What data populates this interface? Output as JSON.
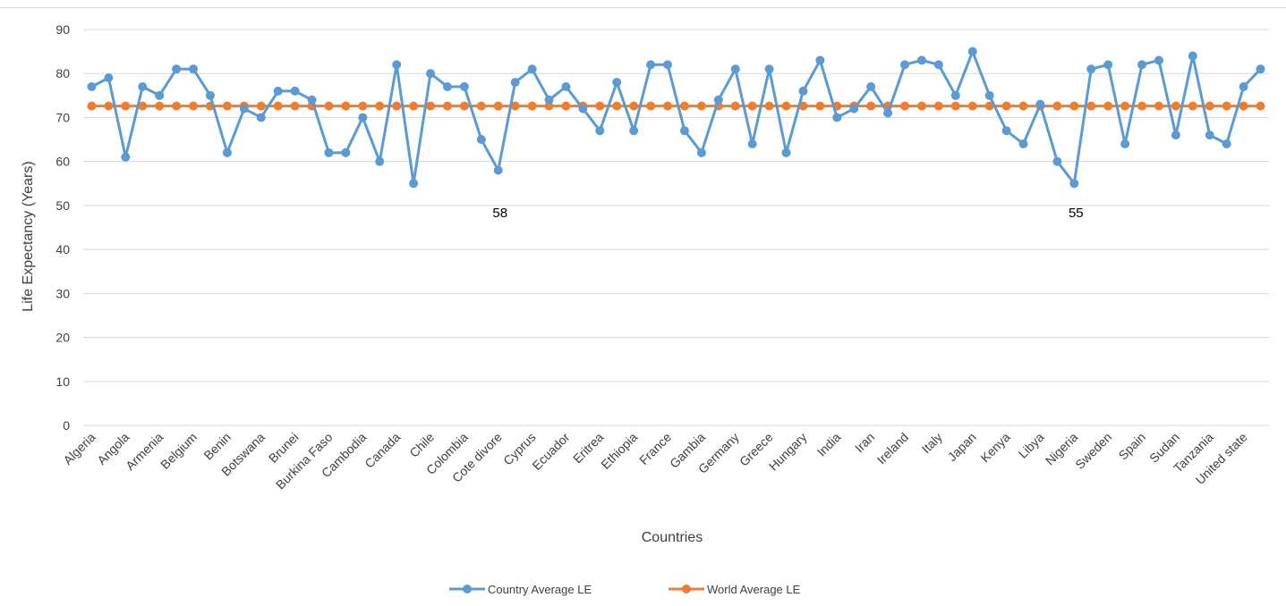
{
  "chart_data": {
    "type": "line",
    "title": "",
    "xlabel": "Countries",
    "ylabel": "Life Expectancy (Years)",
    "ylim": [
      0,
      90
    ],
    "yticks": [
      0,
      10,
      20,
      30,
      40,
      50,
      60,
      70,
      80,
      90
    ],
    "grid": true,
    "legend_position": "bottom",
    "x_tick_labels": [
      "Algeria",
      "Angola",
      "Armenia",
      "Belgium",
      "Benin",
      "Botswana",
      "Brunei",
      "Burkina Faso",
      "Cambodia",
      "Canada",
      "Chile",
      "Colombia",
      "Cote divore",
      "Cyprus",
      "Ecuador",
      "Eritrea",
      "Ethiopia",
      "France",
      "Gambia",
      "Germany",
      "Greece",
      "Hungary",
      "India",
      "Iran",
      "Ireland",
      "Italy",
      "Japan",
      "Kenya",
      "Libya",
      "Nigeria",
      "Sweden",
      "Spain",
      "Sudan",
      "Tanzania",
      "United state"
    ],
    "series": [
      {
        "name": "Country Average LE",
        "color": "#5b9bd5",
        "values": [
          77,
          79,
          61,
          77,
          75,
          81,
          81,
          75,
          62,
          72,
          70,
          76,
          76,
          74,
          62,
          62,
          70,
          60,
          82,
          55,
          80,
          77,
          77,
          65,
          58,
          78,
          81,
          74,
          77,
          72,
          67,
          78,
          67,
          82,
          82,
          67,
          62,
          74,
          81,
          64,
          81,
          62,
          76,
          83,
          70,
          72,
          77,
          71,
          82,
          83,
          82,
          75,
          85,
          75,
          67,
          64,
          73,
          60,
          55,
          81,
          82,
          64,
          82,
          83,
          66,
          84,
          66,
          64,
          77,
          81
        ]
      },
      {
        "name": "World Average LE",
        "color": "#ed7d31",
        "values": [
          72.6,
          72.6,
          72.6,
          72.6,
          72.6,
          72.6,
          72.6,
          72.6,
          72.6,
          72.6,
          72.6,
          72.6,
          72.6,
          72.6,
          72.6,
          72.6,
          72.6,
          72.6,
          72.6,
          72.6,
          72.6,
          72.6,
          72.6,
          72.6,
          72.6,
          72.6,
          72.6,
          72.6,
          72.6,
          72.6,
          72.6,
          72.6,
          72.6,
          72.6,
          72.6,
          72.6,
          72.6,
          72.6,
          72.6,
          72.6,
          72.6,
          72.6,
          72.6,
          72.6,
          72.6,
          72.6,
          72.6,
          72.6,
          72.6,
          72.6,
          72.6,
          72.6,
          72.6,
          72.6,
          72.6,
          72.6,
          72.6,
          72.6,
          72.6,
          72.6,
          72.6,
          72.6,
          72.6,
          72.6,
          72.6,
          72.6,
          72.6,
          72.6,
          72.6,
          72.6
        ]
      }
    ],
    "annotations": [
      {
        "text": "58",
        "point_index": 24
      },
      {
        "text": "55",
        "point_index": 58
      }
    ]
  }
}
